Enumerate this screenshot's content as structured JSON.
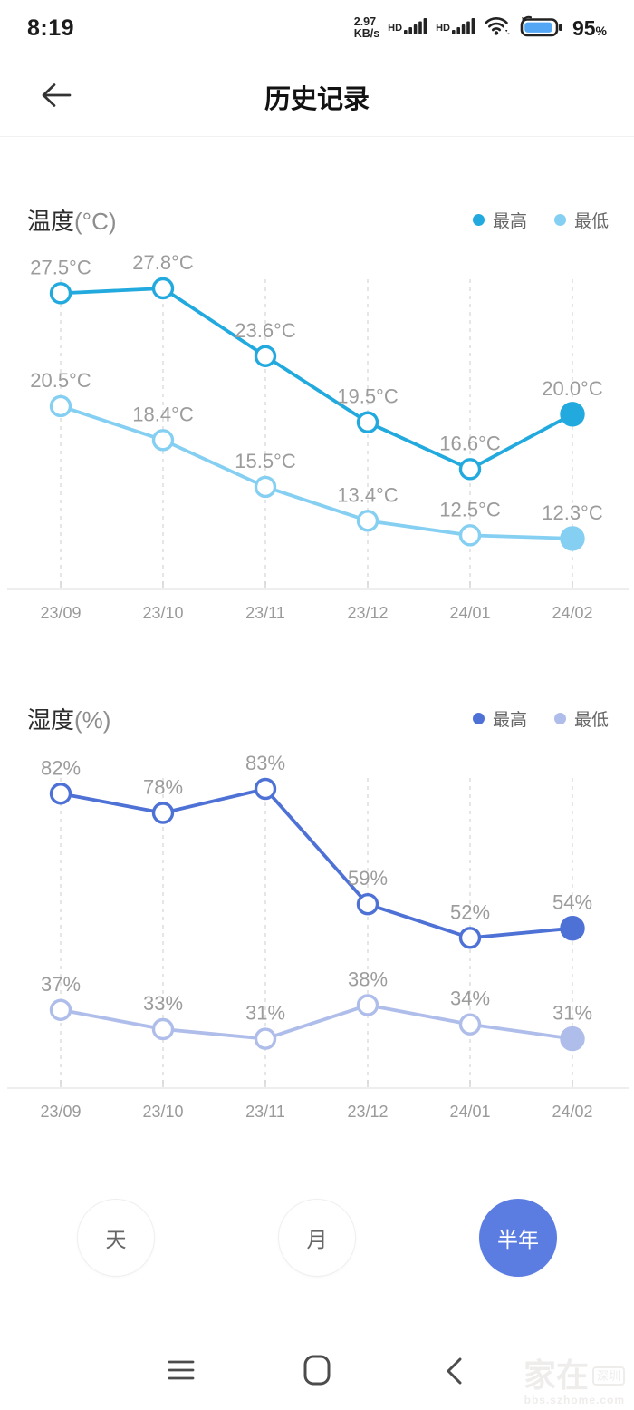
{
  "status_bar": {
    "time": "8:19",
    "network_speed_top": "2.97",
    "network_speed_bottom": "KB/s",
    "sim1_hd": "HD",
    "sim2_hd": "HD",
    "battery_percent_value": "95",
    "battery_percent_sign": "%"
  },
  "header": {
    "title": "历史记录"
  },
  "chart_data": [
    {
      "type": "line",
      "title": "温度(°C)",
      "title_main": "温度",
      "title_unit": "(°C)",
      "categories": [
        "23/09",
        "23/10",
        "23/11",
        "23/12",
        "24/01",
        "24/02"
      ],
      "series": [
        {
          "name": "最高",
          "color": "#22a9de",
          "values": [
            27.5,
            27.8,
            23.6,
            19.5,
            16.6,
            20.0
          ],
          "labels": [
            "27.5°C",
            "27.8°C",
            "23.6°C",
            "19.5°C",
            "16.6°C",
            "20.0°C"
          ]
        },
        {
          "name": "最低",
          "color": "#85cff2",
          "values": [
            20.5,
            18.4,
            15.5,
            13.4,
            12.5,
            12.3
          ],
          "labels": [
            "20.5°C",
            "18.4°C",
            "15.5°C",
            "13.4°C",
            "12.5°C",
            "12.3°C"
          ]
        }
      ],
      "legend_position": "top-right",
      "grid": "dashed-vertical",
      "xlabel": "",
      "ylabel": "温度(°C)",
      "ylim": [
        11,
        29
      ]
    },
    {
      "type": "line",
      "title": "湿度(%)",
      "title_main": "湿度",
      "title_unit": "(%)",
      "categories": [
        "23/09",
        "23/10",
        "23/11",
        "23/12",
        "24/01",
        "24/02"
      ],
      "series": [
        {
          "name": "最高",
          "color": "#4e71d6",
          "values": [
            82,
            78,
            83,
            59,
            52,
            54
          ],
          "labels": [
            "82%",
            "78%",
            "83%",
            "59%",
            "52%",
            "54%"
          ]
        },
        {
          "name": "最低",
          "color": "#aebdea",
          "values": [
            37,
            33,
            31,
            38,
            34,
            31
          ],
          "labels": [
            "37%",
            "33%",
            "31%",
            "38%",
            "34%",
            "31%"
          ]
        }
      ],
      "legend_position": "top-right",
      "grid": "dashed-vertical",
      "xlabel": "",
      "ylabel": "湿度(%)",
      "ylim": [
        25,
        90
      ]
    }
  ],
  "periods": {
    "accent_color": "#5b7ce1",
    "items": [
      {
        "label": "天",
        "active": false
      },
      {
        "label": "月",
        "active": false
      },
      {
        "label": "半年",
        "active": true
      }
    ]
  },
  "watermark": {
    "main": "家在",
    "badge": "深圳",
    "sub": "bbs.szhome.com"
  },
  "colors": {
    "value_label": "#9c9c9c",
    "axis_line": "#e9e9e9",
    "gridline": "#d9d9d9",
    "x_label": "#9a9a9a"
  }
}
